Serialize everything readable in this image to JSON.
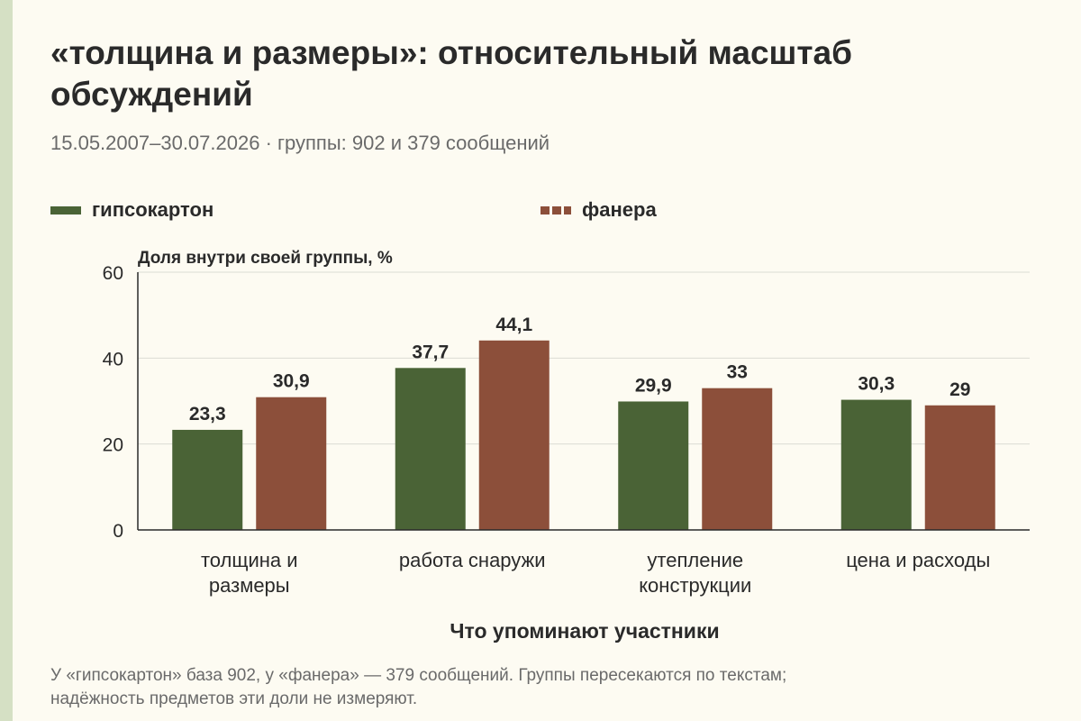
{
  "title": "«толщина и размеры»: относительный масштаб обсуждений",
  "subtitle": "15.05.2007–30.07.2026 · группы: 902 и 379 сообщений",
  "footnote_line1": "У «гипсокартон» база 902, у «фанера» — 379 сообщений. Группы пересекаются по текстам;",
  "footnote_line2": "надёжность предметов эти доли не измеряют.",
  "colors": {
    "green": "#4a6336",
    "brown": "#8c4f3a",
    "grid": "#dcdcd4",
    "axis": "#2a2a2a",
    "background": "#fdfbf2",
    "stripe": "#d5e0c4"
  },
  "chart_data": {
    "type": "bar",
    "ylabel": "Доля внутри своей группы, %",
    "xlabel": "Что упоминают участники",
    "ylim": [
      0,
      60
    ],
    "yticks": [
      0,
      20,
      40,
      60
    ],
    "grid": true,
    "legend_position": "top",
    "categories": [
      [
        "толщина и",
        "размеры"
      ],
      [
        "работа снаружи"
      ],
      [
        "утепление",
        "конструкции"
      ],
      [
        "цена и расходы"
      ]
    ],
    "series": [
      {
        "name": "гипсокартон",
        "color": "#4a6336",
        "values": [
          23.3,
          37.7,
          29.9,
          30.3
        ],
        "labels": [
          "23,3",
          "37,7",
          "29,9",
          "30,3"
        ]
      },
      {
        "name": "фанера",
        "color": "#8c4f3a",
        "values": [
          30.9,
          44.1,
          33,
          29
        ],
        "labels": [
          "30,9",
          "44,1",
          "33",
          "29"
        ]
      }
    ]
  }
}
